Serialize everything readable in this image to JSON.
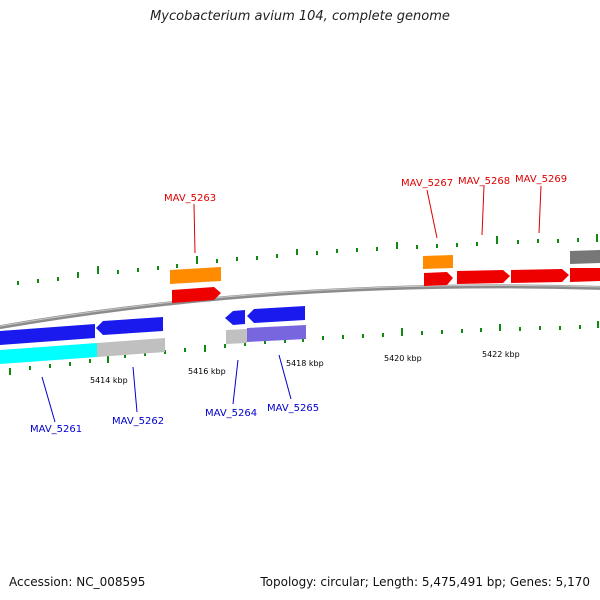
{
  "title": "Mycobacterium avium 104, complete genome",
  "footer": {
    "accession": "Accession: NC_008595",
    "summary": "Topology: circular; Length: 5,475,491 bp; Genes: 5,170"
  },
  "colors": {
    "backbone": "#8c8c8c",
    "tick": "#118811",
    "forward_label": "#dd0000",
    "reverse_label": "#0000cc"
  },
  "scale_labels": [
    "5414 kbp",
    "5416 kbp",
    "5418 kbp",
    "5420 kbp",
    "5422 kbp"
  ],
  "forward_labels": [
    "MAV_5263",
    "MAV_5267",
    "MAV_5268",
    "MAV_5269"
  ],
  "reverse_labels": [
    "MAV_5261",
    "MAV_5262",
    "MAV_5264",
    "MAV_5265"
  ]
}
